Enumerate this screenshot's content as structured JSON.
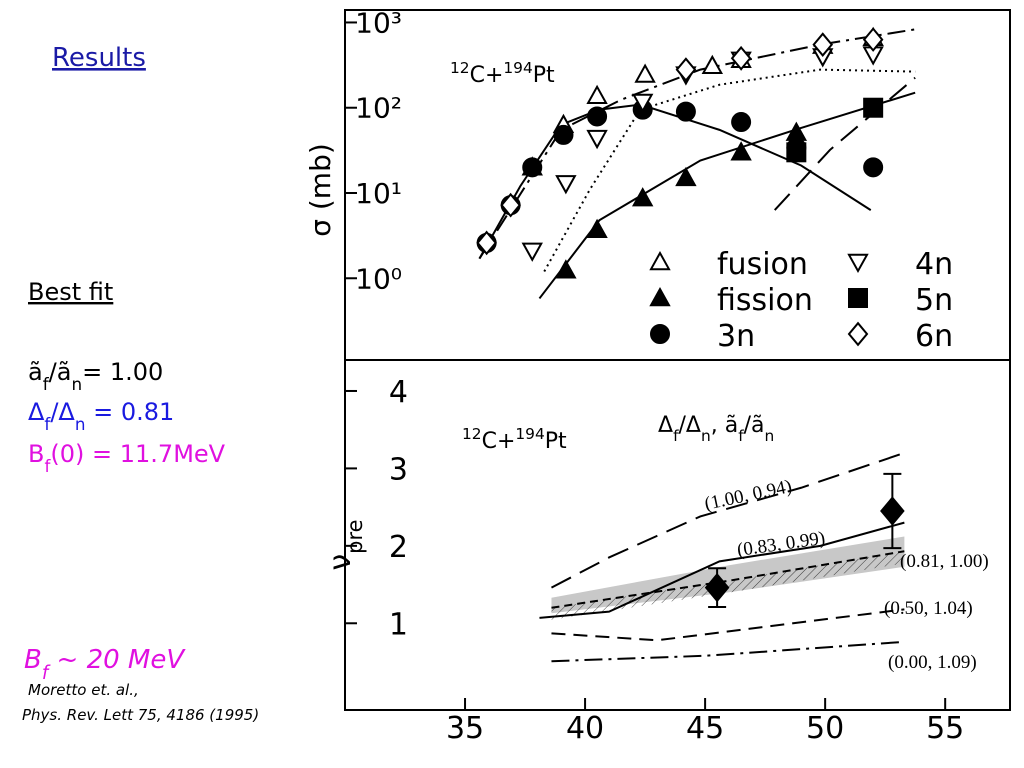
{
  "header": {
    "title": "Results"
  },
  "notes": {
    "best_fit": "Best fit",
    "alpha": [
      "ã",
      "f",
      "/ã",
      "n",
      "= 1.00"
    ],
    "delta": [
      "Δ",
      "f",
      "/Δ",
      "n",
      " = 0.81"
    ],
    "barrier": [
      "B",
      "f",
      "(0) = 11.7MeV"
    ],
    "estimate": [
      "B",
      "f",
      " ~ 20 MeV"
    ],
    "ref1": "Moretto et. al.,",
    "ref2": "Phys. Rev. Lett 75, 4186 (1995)"
  },
  "chart_data": [
    {
      "type": "scatter",
      "inset": [
        "12",
        "C+",
        "194",
        "Pt"
      ],
      "ylabel": "σ (mb)",
      "log_y": true,
      "xlim": [
        30,
        57.7
      ],
      "ylim": [
        0.11,
        1400
      ],
      "yticks": [
        {
          "value": 1,
          "label": "10⁰"
        },
        {
          "value": 10,
          "label": "10¹"
        },
        {
          "value": 100,
          "label": "10²"
        },
        {
          "value": 1000,
          "label": "10³"
        }
      ],
      "series": [
        {
          "name": "fusion",
          "marker": "triangle-open",
          "x": [
            37.8,
            39.1,
            40.5,
            42.5,
            45.3,
            46.5,
            49.9,
            52
          ],
          "values": [
            20,
            63,
            138,
            245,
            310,
            365,
            535,
            660
          ]
        },
        {
          "name": "fission",
          "marker": "triangle",
          "x": [
            39.2,
            40.5,
            42.4,
            44.2,
            46.5,
            48.8
          ],
          "values": [
            1.24,
            3.7,
            8.7,
            15,
            30,
            51
          ]
        },
        {
          "name": "3n",
          "marker": "circle",
          "x": [
            35.9,
            36.9,
            37.8,
            39.1,
            40.5,
            42.4,
            44.2,
            46.5,
            48.8,
            52
          ],
          "values": [
            2.6,
            7.2,
            20,
            48,
            79,
            95,
            90,
            68,
            34,
            20
          ]
        },
        {
          "name": "4n",
          "marker": "triangle-down-open",
          "x": [
            37.8,
            39.2,
            40.5,
            42.4,
            44.2,
            46.5,
            49.9,
            52
          ],
          "values": [
            2.1,
            13,
            44,
            117,
            245,
            365,
            400,
            420
          ]
        },
        {
          "name": "5n",
          "marker": "square",
          "x": [
            48.8,
            52
          ],
          "values": [
            30,
            100
          ]
        },
        {
          "name": "6n",
          "marker": "diamond-open",
          "x": [
            35.9,
            36.9,
            44.2,
            46.5,
            49.9,
            52
          ],
          "values": [
            2.6,
            7.2,
            280,
            380,
            550,
            630
          ]
        }
      ],
      "curves": [
        {
          "dash": "dashdot",
          "x": [
            35.6,
            39.0,
            41.5,
            44.8,
            49.8,
            53.75
          ],
          "values": [
            1.7,
            55,
            124,
            280,
            550,
            830
          ]
        },
        {
          "dash": "solid",
          "x": [
            35.6,
            37.3,
            39.0,
            40.6,
            42.3,
            45.6,
            49.0,
            51.9
          ],
          "values": [
            1.7,
            12,
            63,
            95,
            109,
            55,
            21,
            6.3
          ]
        },
        {
          "dash": "solid",
          "x": [
            38.1,
            40.6,
            44.8,
            49.0,
            53.75
          ],
          "values": [
            0.58,
            4.8,
            24,
            58,
            150
          ]
        },
        {
          "dash": "dotted",
          "x": [
            38.3,
            40.2,
            42.3,
            45.6,
            49.8,
            53.75
          ],
          "values": [
            1.2,
            11,
            95,
            186,
            280,
            265
          ]
        },
        {
          "dash": "long",
          "x": [
            47.9,
            50.2,
            53.75
          ],
          "values": [
            6.3,
            32,
            225
          ]
        }
      ]
    },
    {
      "type": "line",
      "inset": [
        "12",
        "C+",
        "194",
        "Pt"
      ],
      "ylabel": [
        "ν",
        "pre"
      ],
      "annotation": [
        "Δ",
        "f",
        "/Δ",
        "n",
        ", ã",
        "f",
        "/ã",
        "n"
      ],
      "xlim": [
        30,
        57.7
      ],
      "ylim": [
        -0.12,
        4.4
      ],
      "xticks": [
        35,
        40,
        45,
        50,
        55
      ],
      "yticks": [
        1,
        2,
        3,
        4
      ],
      "band": {
        "x": [
          38.6,
          46,
          53.3
        ],
        "lower": [
          1.13,
          1.4,
          1.73
        ],
        "upper": [
          1.33,
          1.75,
          2.12
        ]
      },
      "curves": [
        {
          "label": "(1.00, 0.94)",
          "dash": "long",
          "x": [
            38.6,
            41,
            44.8,
            49,
            53.3
          ],
          "values": [
            1.46,
            1.85,
            2.38,
            2.75,
            3.2
          ]
        },
        {
          "label": "(0.83, 0.99)",
          "dash": "solid",
          "x": [
            38.1,
            41,
            45.6,
            49.8,
            53.3
          ],
          "values": [
            1.07,
            1.15,
            1.8,
            2.0,
            2.3
          ]
        },
        {
          "label": "(0.81, 1.00)",
          "dash": "hatched",
          "x": [
            38.6,
            46,
            53.3
          ],
          "values": [
            1.2,
            1.55,
            1.93
          ]
        },
        {
          "label": "(0.50, 1.04)",
          "dash": "dashed",
          "x": [
            38.6,
            43,
            53.3
          ],
          "values": [
            0.87,
            0.78,
            1.18
          ]
        },
        {
          "label": "(0.00, 1.09)",
          "dash": "dashdot",
          "x": [
            38.6,
            45,
            53.3
          ],
          "values": [
            0.51,
            0.58,
            0.76
          ]
        }
      ],
      "points": {
        "x": [
          45.5,
          52.8
        ],
        "values": [
          1.46,
          2.45
        ],
        "errors": [
          0.25,
          0.48
        ]
      }
    }
  ]
}
